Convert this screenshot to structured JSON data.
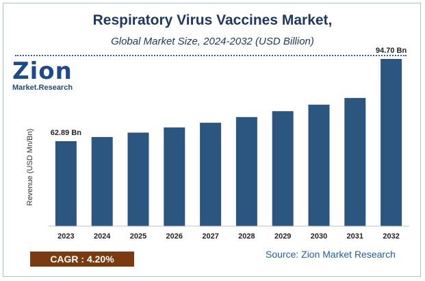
{
  "header": {
    "title": "Respiratory Virus Vaccines Market,",
    "subtitle": "Global Market Size, 2024-2032 (USD Billion)"
  },
  "logo": {
    "zion": "Zion",
    "market_research": "Market.Research"
  },
  "footer": {
    "cagr": "CAGR :  4.20%",
    "source": "Source: Zion Market Research"
  },
  "colors": {
    "bar": "#2b567f",
    "title": "#1f3864",
    "cagr_bg": "#7b3a10",
    "source": "#1f5fa8"
  },
  "chart_data": {
    "type": "bar",
    "title": "Respiratory Virus Vaccines Market,",
    "subtitle": "Global Market Size, 2024-2032 (USD Billion)",
    "xlabel": "",
    "ylabel": "Revenue (USD Mn/Bn)",
    "categories": [
      "2023",
      "2024",
      "2025",
      "2026",
      "2027",
      "2028",
      "2029",
      "2030",
      "2031",
      "2032"
    ],
    "values": [
      62.89,
      64.5,
      66.2,
      68.2,
      70.0,
      72.2,
      74.5,
      77.0,
      79.6,
      94.7
    ],
    "data_labels": [
      {
        "index": 0,
        "text": "62.89 Bn"
      },
      {
        "index": 9,
        "text": "94.70 Bn"
      }
    ],
    "ylim": [
      0,
      100
    ],
    "grid": false,
    "legend": "none"
  }
}
